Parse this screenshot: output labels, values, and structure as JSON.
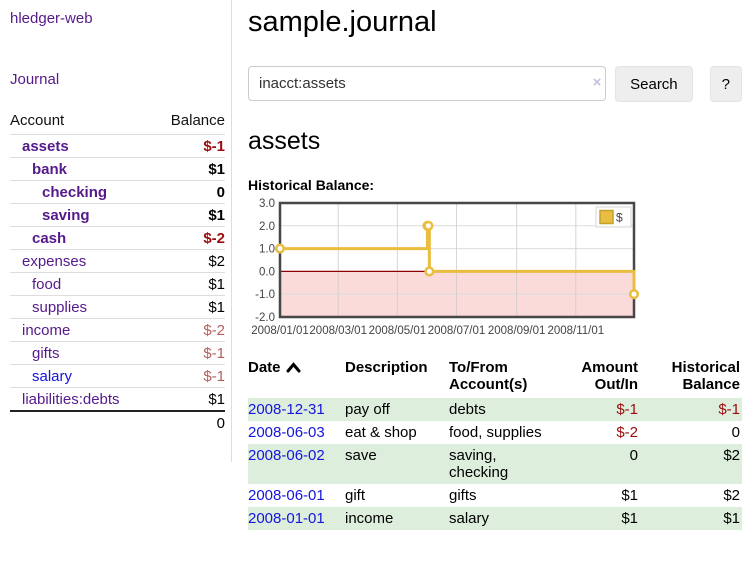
{
  "app": {
    "brand": "hledger-web",
    "nav_journal": "Journal"
  },
  "colors": {
    "link_purple": "#551a8b",
    "link_blue": "#1515dd",
    "negative_strong": "#9c0d0d",
    "negative_soft": "#b2605e",
    "row_stripe_green": "#ddeedd",
    "chart_gold": "#e9bd3f",
    "chart_negative_region": "#fbdada",
    "chart_zero_line": "#8b0000"
  },
  "sidebar_accounts": {
    "headers": {
      "account": "Account",
      "balance": "Balance"
    },
    "rows": [
      {
        "name": "assets",
        "indent": 1,
        "bold": true,
        "balance": "$-1",
        "neg": "strong"
      },
      {
        "name": "bank",
        "indent": 2,
        "bold": true,
        "balance": "$1"
      },
      {
        "name": "checking",
        "indent": 3,
        "bold": true,
        "balance": "0"
      },
      {
        "name": "saving",
        "indent": 3,
        "bold": true,
        "balance": "$1"
      },
      {
        "name": "cash",
        "indent": 2,
        "bold": true,
        "balance": "$-2",
        "neg": "strong"
      },
      {
        "name": "expenses",
        "indent": 1,
        "bold": false,
        "balance": "$2"
      },
      {
        "name": "food",
        "indent": 2,
        "bold": false,
        "balance": "$1"
      },
      {
        "name": "supplies",
        "indent": 2,
        "bold": false,
        "balance": "$1"
      },
      {
        "name": "income",
        "indent": 1,
        "bold": false,
        "balance": "$-2",
        "neg": "soft"
      },
      {
        "name": "gifts",
        "indent": 2,
        "bold": false,
        "balance": "$-1",
        "neg": "soft"
      },
      {
        "name": "salary",
        "indent": 2,
        "bold": false,
        "balance": "$-1",
        "neg": "soft",
        "link_style": "blue"
      },
      {
        "name": "liabilities:debts",
        "indent": 1,
        "bold": false,
        "balance": "$1"
      }
    ],
    "total": "0"
  },
  "header": {
    "title": "sample.journal"
  },
  "search": {
    "value": "inacct:assets",
    "clear_icon": "×",
    "button_label": "Search",
    "help_label": "?"
  },
  "account_heading": "assets",
  "chart_heading": "Historical Balance:",
  "chart_data": {
    "type": "line",
    "step": true,
    "title": "Historical Balance:",
    "legend": [
      {
        "label": "$",
        "color": "#e9bd3f"
      }
    ],
    "legend_position": "top-right",
    "grid": true,
    "x_axis": {
      "min": 0,
      "max": 365,
      "ticks": [
        {
          "pos": 0,
          "label": "2008/01/01"
        },
        {
          "pos": 60,
          "label": "2008/03/01"
        },
        {
          "pos": 121,
          "label": "2008/05/01"
        },
        {
          "pos": 182,
          "label": "2008/07/01"
        },
        {
          "pos": 244,
          "label": "2008/09/01"
        },
        {
          "pos": 305,
          "label": "2008/11/01"
        }
      ]
    },
    "y_axis": {
      "min": -2,
      "max": 3,
      "ticks": [
        {
          "v": 3,
          "label": "3.0"
        },
        {
          "v": 2,
          "label": "2.0"
        },
        {
          "v": 1,
          "label": "1.0"
        },
        {
          "v": 0,
          "label": "0.0"
        },
        {
          "v": -1,
          "label": "-1.0"
        },
        {
          "v": -2,
          "label": "-2.0"
        }
      ]
    },
    "series": [
      {
        "name": "$",
        "color": "#e9bd3f",
        "points": [
          {
            "date": "2008-01-01",
            "x": 0,
            "y": 1
          },
          {
            "date": "2008-06-01",
            "x": 152,
            "y": 2
          },
          {
            "date": "2008-06-02",
            "x": 153,
            "y": 2
          },
          {
            "date": "2008-06-03",
            "x": 154,
            "y": 0
          },
          {
            "date": "2008-12-31",
            "x": 365,
            "y": -1
          }
        ]
      }
    ],
    "negative_region_color": "#fbdada",
    "zero_line_color": "#8b0000"
  },
  "register": {
    "columns": [
      {
        "label": "Date",
        "align": "left",
        "sorted_asc": true
      },
      {
        "label": "Description",
        "align": "left"
      },
      {
        "label": "To/From\nAccount(s)",
        "align": "left"
      },
      {
        "label": "Amount\nOut/In",
        "align": "right"
      },
      {
        "label": "Historical\nBalance",
        "align": "right"
      }
    ],
    "rows": [
      {
        "date": "2008-12-31",
        "description": "pay off",
        "tofrom": "debts",
        "amount": "$-1",
        "balance": "$-1"
      },
      {
        "date": "2008-06-03",
        "description": "eat & shop",
        "tofrom": "food, supplies",
        "amount": "$-2",
        "balance": "0"
      },
      {
        "date": "2008-06-02",
        "description": "save",
        "tofrom": "saving,\nchecking",
        "amount": "0",
        "balance": "$2"
      },
      {
        "date": "2008-06-01",
        "description": "gift",
        "tofrom": "gifts",
        "amount": "$1",
        "balance": "$2"
      },
      {
        "date": "2008-01-01",
        "description": "income",
        "tofrom": "salary",
        "amount": "$1",
        "balance": "$1"
      }
    ]
  }
}
